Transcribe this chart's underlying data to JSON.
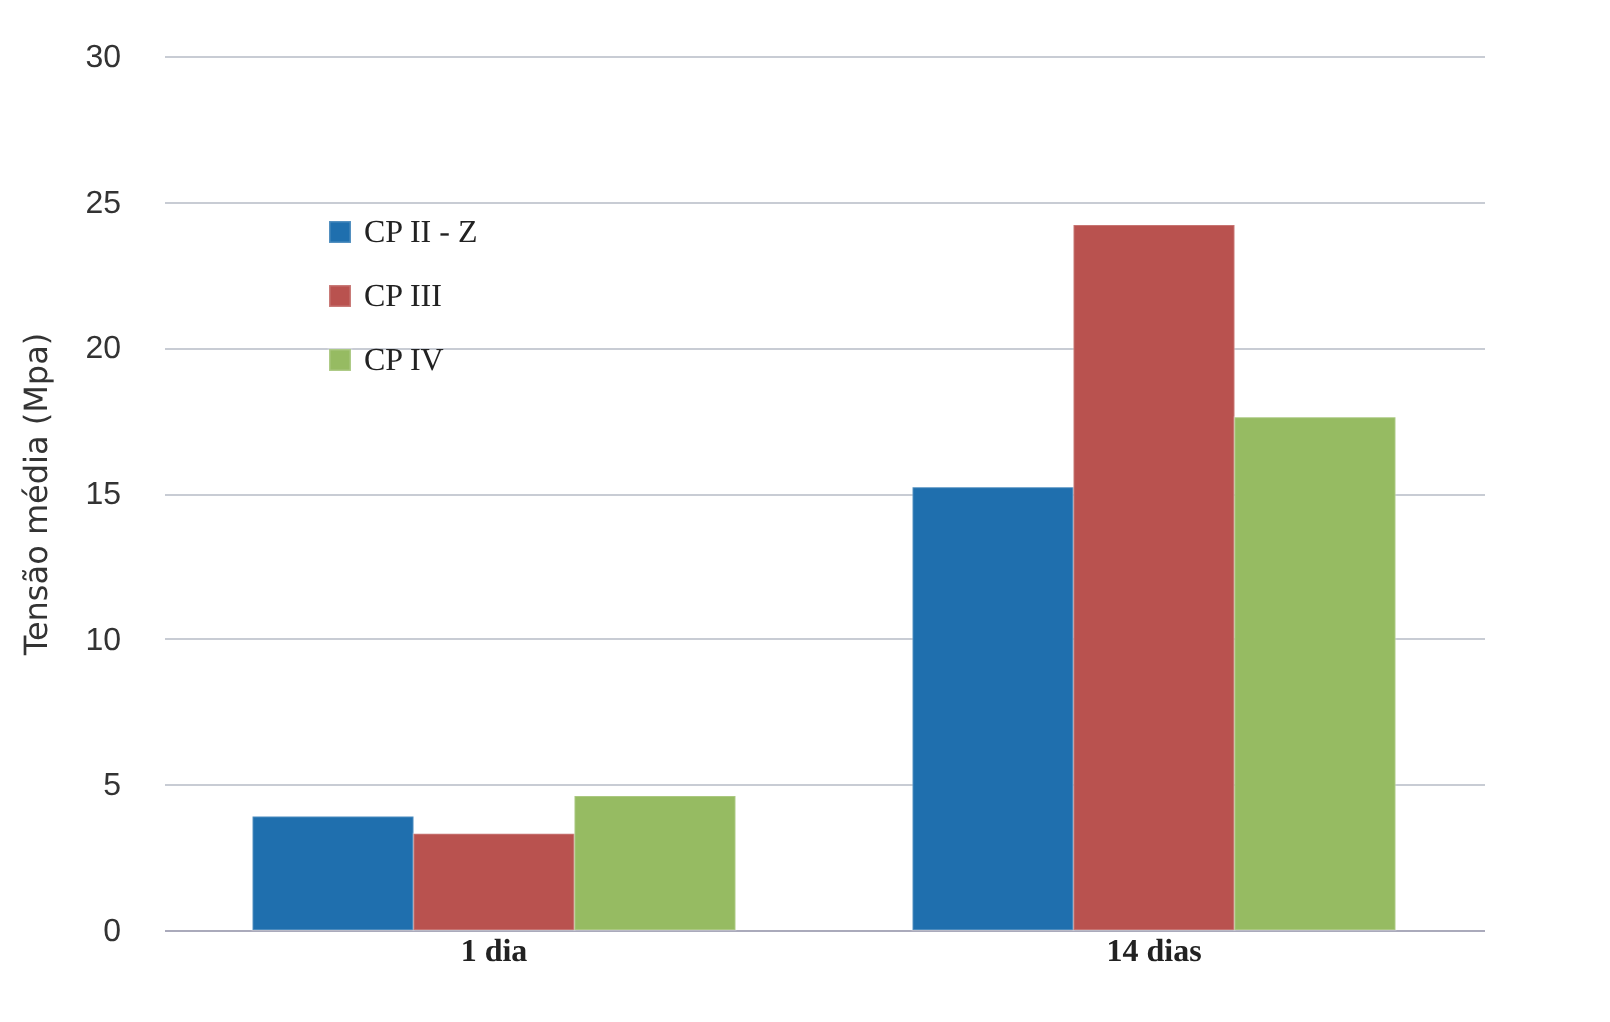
{
  "chart_data": {
    "type": "bar",
    "ylabel": "Tensão média (Mpa)",
    "categories": [
      "1 dia",
      "14 dias"
    ],
    "series": [
      {
        "name": "CP II - Z",
        "color": "#1f6fae",
        "values": [
          3.9,
          15.2
        ]
      },
      {
        "name": "CP III",
        "color": "#b9524f",
        "values": [
          3.3,
          24.2
        ]
      },
      {
        "name": "CP IV",
        "color": "#96bb62",
        "values": [
          4.6,
          17.6
        ]
      }
    ],
    "ylim": [
      0,
      30
    ],
    "yticks": [
      0,
      5,
      10,
      15,
      20,
      25,
      30
    ],
    "grid": "y",
    "legend": "top left"
  }
}
